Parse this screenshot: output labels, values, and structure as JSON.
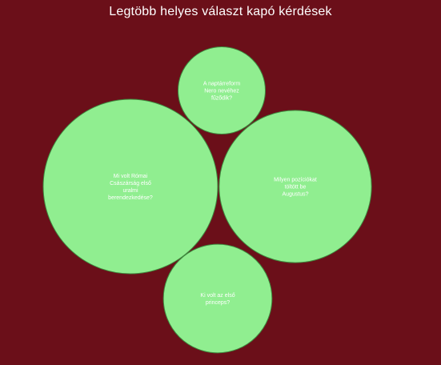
{
  "chart_data": {
    "type": "bubble",
    "title": "Legtöbb helyes választ kapó kérdések",
    "bubble_color": "#90ee90",
    "background_color": "#6b0f19",
    "points": [
      {
        "label": "A naptárreform Nero nevéhez fűződik?",
        "value": 1.0
      },
      {
        "label": "Mi volt Római Császárság első uralmi berendezkedése?",
        "value": 4.0
      },
      {
        "label": "Milyen pozíciókat töltött be Augustus?",
        "value": 3.05
      },
      {
        "label": "Ki volt az első princeps?",
        "value": 1.55
      }
    ]
  }
}
